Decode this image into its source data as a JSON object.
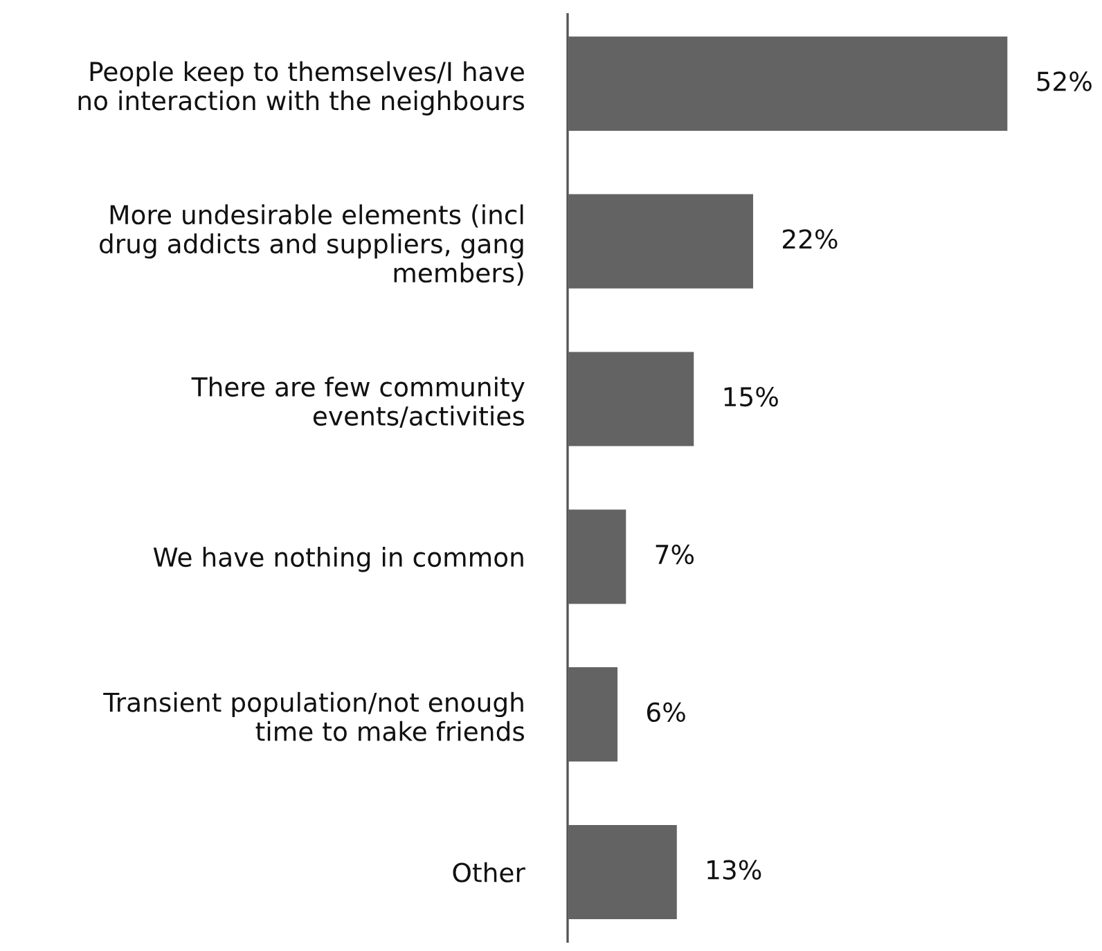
{
  "chart_data": {
    "type": "bar",
    "orientation": "horizontal",
    "categories": [
      "People keep to themselves/I have\nno interaction with the neighbours",
      "More undesirable elements (incl\ndrug addicts and suppliers, gang\nmembers)",
      "There are few community\nevents/activities",
      "We have nothing in common",
      "Transient population/not enough\ntime to make friends",
      "Other"
    ],
    "values": [
      52,
      22,
      15,
      7,
      6,
      13
    ],
    "value_labels": [
      "52%",
      "22%",
      "15%",
      "7%",
      "6%",
      "13%"
    ],
    "color": "#636363",
    "grid": false,
    "legend": false,
    "tick_labels": "y"
  }
}
